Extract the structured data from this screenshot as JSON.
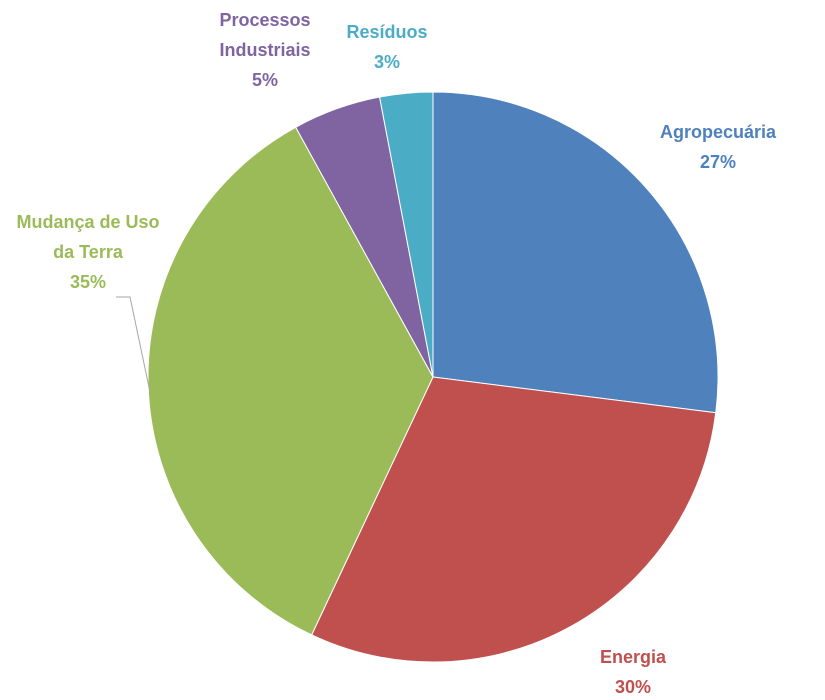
{
  "chart_data": {
    "type": "pie",
    "categories": [
      "Agropecuária",
      "Energia",
      "Mudança de Uso da Terra",
      "Processos Industriais",
      "Resíduos"
    ],
    "values": [
      27,
      30,
      35,
      5,
      3
    ],
    "value_labels": [
      "27%",
      "30%",
      "35%",
      "5%",
      "3%"
    ],
    "colors": [
      "#4f81bd",
      "#c0504d",
      "#9bbb59",
      "#8064a2",
      "#4bacc6"
    ]
  }
}
